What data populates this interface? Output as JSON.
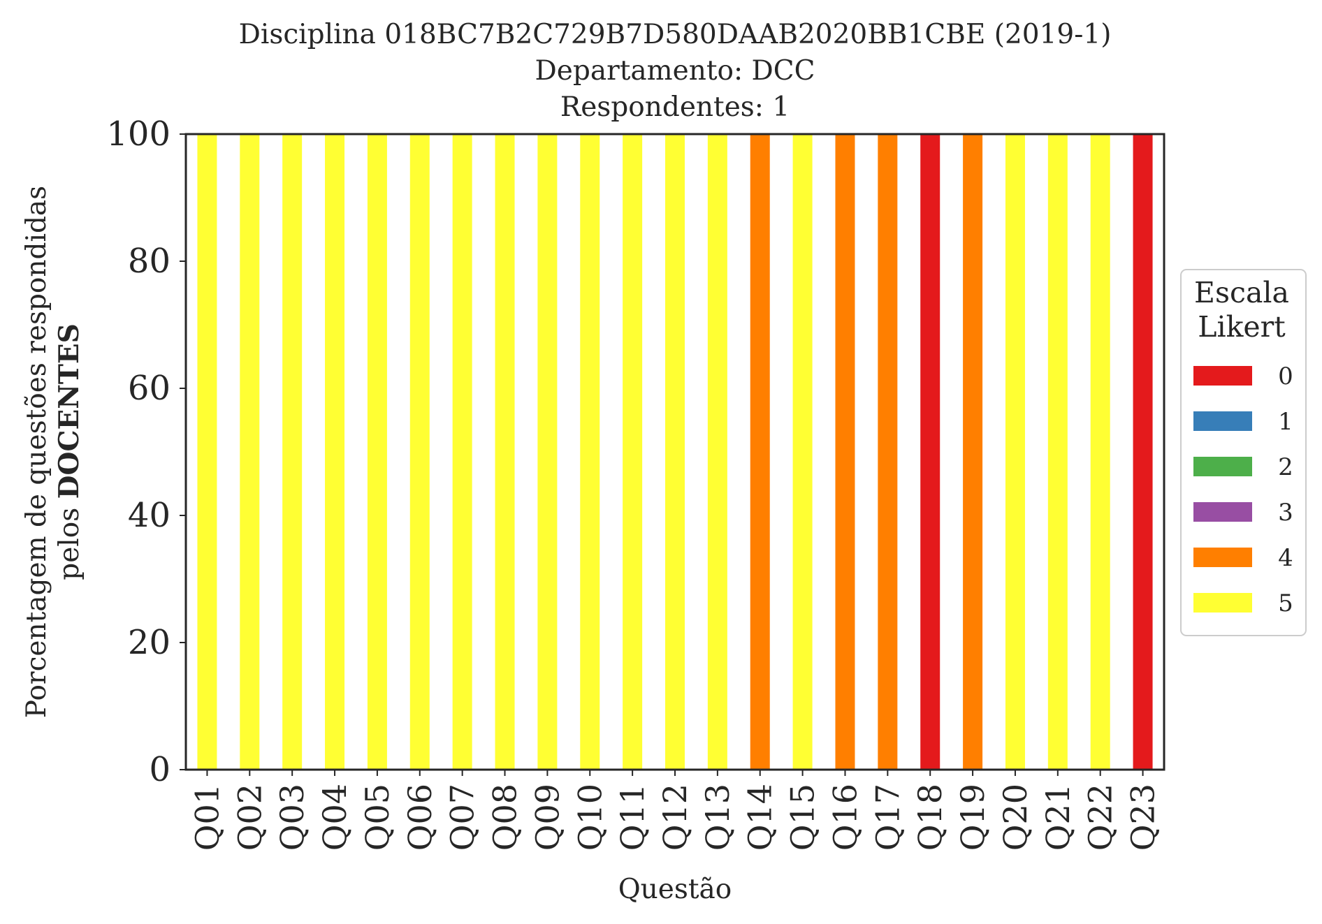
{
  "chart_data": {
    "type": "bar",
    "stacked": true,
    "title_lines": [
      "Disciplina 018BC7B2C729B7D580DAAB2020BB1CBE (2019-1)",
      "Departamento: DCC",
      "Respondentes: 1"
    ],
    "xlabel": "Questão",
    "ylabel_line1": "Porcentagem de questões respondidas",
    "ylabel_line2_prefix": "pelos ",
    "ylabel_line2_bold": "DOCENTES",
    "ylim": [
      0,
      100
    ],
    "yticks": [
      "0",
      "20",
      "40",
      "60",
      "80",
      "100"
    ],
    "grid": false,
    "legend_placement": "center-right",
    "legend": {
      "title_line1": "Escala",
      "title_line2": "Likert",
      "items": [
        {
          "label": "0",
          "color": "#e41a1c"
        },
        {
          "label": "1",
          "color": "#377eb8"
        },
        {
          "label": "2",
          "color": "#4daf4a"
        },
        {
          "label": "3",
          "color": "#984ea3"
        },
        {
          "label": "4",
          "color": "#ff7f00"
        },
        {
          "label": "5",
          "color": "#ffff33"
        }
      ]
    },
    "categories": [
      "Q01",
      "Q02",
      "Q03",
      "Q04",
      "Q05",
      "Q06",
      "Q07",
      "Q08",
      "Q09",
      "Q10",
      "Q11",
      "Q12",
      "Q13",
      "Q14",
      "Q15",
      "Q16",
      "Q17",
      "Q18",
      "Q19",
      "Q20",
      "Q21",
      "Q22",
      "Q23"
    ],
    "series": [
      {
        "name": "0",
        "color": "#e41a1c",
        "values": [
          0,
          0,
          0,
          0,
          0,
          0,
          0,
          0,
          0,
          0,
          0,
          0,
          0,
          0,
          0,
          0,
          0,
          100,
          0,
          0,
          0,
          0,
          100
        ]
      },
      {
        "name": "1",
        "color": "#377eb8",
        "values": [
          0,
          0,
          0,
          0,
          0,
          0,
          0,
          0,
          0,
          0,
          0,
          0,
          0,
          0,
          0,
          0,
          0,
          0,
          0,
          0,
          0,
          0,
          0
        ]
      },
      {
        "name": "2",
        "color": "#4daf4a",
        "values": [
          0,
          0,
          0,
          0,
          0,
          0,
          0,
          0,
          0,
          0,
          0,
          0,
          0,
          0,
          0,
          0,
          0,
          0,
          0,
          0,
          0,
          0,
          0
        ]
      },
      {
        "name": "3",
        "color": "#984ea3",
        "values": [
          0,
          0,
          0,
          0,
          0,
          0,
          0,
          0,
          0,
          0,
          0,
          0,
          0,
          0,
          0,
          0,
          0,
          0,
          0,
          0,
          0,
          0,
          0
        ]
      },
      {
        "name": "4",
        "color": "#ff7f00",
        "values": [
          0,
          0,
          0,
          0,
          0,
          0,
          0,
          0,
          0,
          0,
          0,
          0,
          0,
          100,
          0,
          100,
          100,
          0,
          100,
          0,
          0,
          0,
          0
        ]
      },
      {
        "name": "5",
        "color": "#ffff33",
        "values": [
          100,
          100,
          100,
          100,
          100,
          100,
          100,
          100,
          100,
          100,
          100,
          100,
          100,
          0,
          100,
          0,
          0,
          0,
          0,
          100,
          100,
          100,
          0
        ]
      }
    ]
  }
}
